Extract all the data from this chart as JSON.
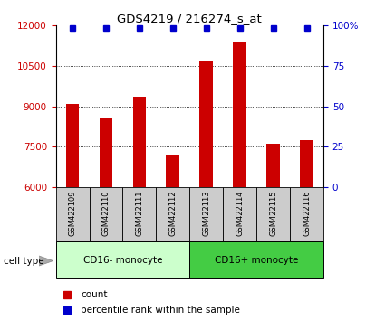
{
  "title": "GDS4219 / 216274_s_at",
  "samples": [
    "GSM422109",
    "GSM422110",
    "GSM422111",
    "GSM422112",
    "GSM422113",
    "GSM422114",
    "GSM422115",
    "GSM422116"
  ],
  "counts": [
    9100,
    8600,
    9350,
    7200,
    10700,
    11400,
    7600,
    7750
  ],
  "percentiles": [
    99,
    99,
    99,
    99,
    99,
    99,
    99,
    99
  ],
  "ylim_left": [
    6000,
    12000
  ],
  "ylim_right": [
    0,
    100
  ],
  "yticks_left": [
    6000,
    7500,
    9000,
    10500,
    12000
  ],
  "yticks_right": [
    0,
    25,
    50,
    75,
    100
  ],
  "group1_label": "CD16- monocyte",
  "group2_label": "CD16+ monocyte",
  "bar_color": "#cc0000",
  "dot_color": "#0000cc",
  "left_axis_color": "#cc0000",
  "right_axis_color": "#0000cc",
  "group1_bg": "#ccffcc",
  "group2_bg": "#44cc44",
  "sample_label_bg": "#cccccc",
  "cell_type_label": "cell type",
  "legend_count_color": "#cc0000",
  "legend_dot_color": "#0000cc",
  "legend_count_text": "count",
  "legend_percentile_text": "percentile rank within the sample",
  "bar_width": 0.4
}
